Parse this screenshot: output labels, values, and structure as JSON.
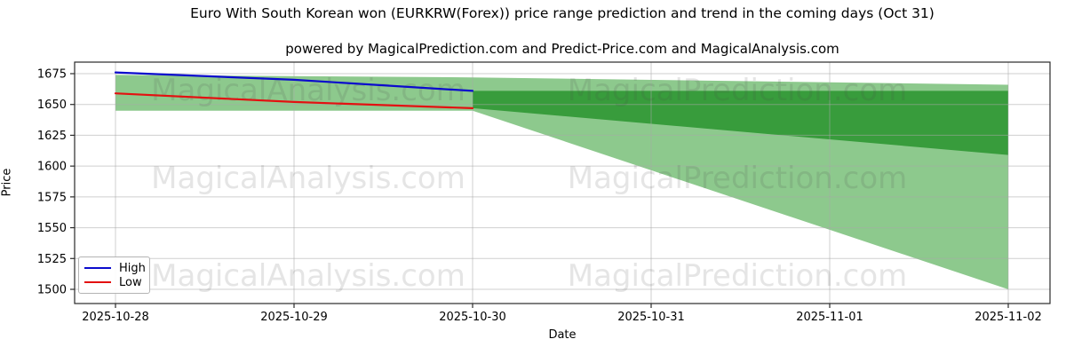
{
  "title": "Euro With South Korean won (EURKRW(Forex)) price range prediction and trend in the coming days (Oct 31)",
  "subtitle": "powered by MagicalPrediction.com and Predict-Price.com and MagicalAnalysis.com",
  "axes": {
    "x_label": "Date",
    "y_label": "Price"
  },
  "legend": {
    "items": [
      {
        "label": "High",
        "color": "#0b0bcd"
      },
      {
        "label": "Low",
        "color": "#e31111"
      }
    ]
  },
  "watermarks": {
    "texts": [
      "MagicalAnalysis.com",
      "MagicalPrediction.com"
    ]
  },
  "colors": {
    "band_light_green": "#8dc98d",
    "band_dark_green": "#389c3c",
    "high_line": "#0b0bcd",
    "low_line": "#e31111",
    "grid": "#a8a8a8",
    "spine": "#2a2a2a",
    "watermark": "rgba(70,70,70,0.14)"
  },
  "chart_data": {
    "type": "line",
    "title": "Euro With South Korean won (EURKRW(Forex)) price range prediction and trend in the coming days (Oct 31)",
    "xlabel": "Date",
    "ylabel": "Price",
    "x_dates": [
      "2025-10-28",
      "2025-10-29",
      "2025-10-30",
      "2025-10-31",
      "2025-11-01",
      "2025-11-02"
    ],
    "yticks": [
      1500,
      1525,
      1550,
      1575,
      1600,
      1625,
      1650,
      1675
    ],
    "ylim": [
      1489,
      1684
    ],
    "grid": true,
    "legend_position": "lower left",
    "series": [
      {
        "name": "High",
        "x_idx": [
          0,
          1,
          2
        ],
        "values": [
          1676,
          1670,
          1661
        ]
      },
      {
        "name": "Low",
        "x_idx": [
          0,
          1,
          2
        ],
        "values": [
          1659,
          1652,
          1647
        ]
      }
    ],
    "bands": [
      {
        "name": "history-range",
        "shade": "light",
        "x_idx": [
          0,
          2
        ],
        "top": [
          1674,
          1672
        ],
        "bottom": [
          1645,
          1645
        ]
      },
      {
        "name": "forecast-outer",
        "shade": "light",
        "x_idx": [
          2,
          5
        ],
        "top": [
          1672,
          1666
        ],
        "bottom": [
          1645,
          1500
        ]
      },
      {
        "name": "forecast-inner",
        "shade": "dark",
        "x_idx": [
          2,
          5
        ],
        "top": [
          1661,
          1661
        ],
        "bottom": [
          1647,
          1609
        ]
      }
    ]
  }
}
